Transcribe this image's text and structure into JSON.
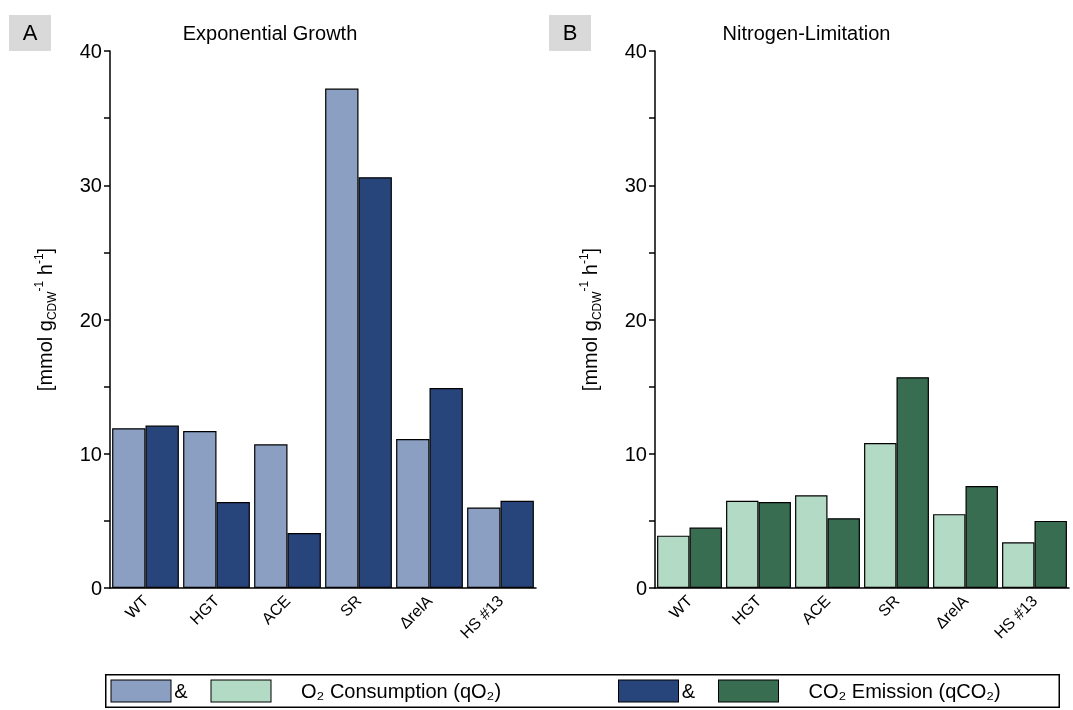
{
  "chart_data": [
    {
      "type": "bar",
      "title": "Exponential Growth",
      "ylabel": "[mmol g$_{CDW}$$^{-1}$ h$^{-1}$]",
      "annotations": [
        "A"
      ],
      "categories": [
        "WT",
        "HGT",
        "ACE",
        "SR",
        "ΔrelA",
        "HS #13"
      ],
      "series": [
        {
          "color": "#8a9fc2",
          "values": [
            11.9,
            11.7,
            10.7,
            37.2,
            11.1,
            6.0
          ]
        },
        {
          "color": "#27457b",
          "values": [
            12.1,
            6.4,
            4.1,
            30.6,
            14.9,
            6.5
          ]
        }
      ],
      "ylim": [
        0,
        40
      ],
      "yticks": [
        0,
        {
          "value": 5,
          "label": null
        },
        10,
        {
          "value": 15,
          "label": null
        },
        20,
        {
          "value": 25,
          "label": null
        },
        30,
        {
          "value": 35,
          "label": null
        },
        40
      ],
      "grid": false
    },
    {
      "type": "bar",
      "title": "Nitrogen-Limitation",
      "ylabel": "[mmol g$_{CDW}$$^{-1}$ h$^{-1}$]",
      "annotations": [
        "B",
        "&"
      ],
      "categories": [
        "WT",
        "HGT",
        "ACE",
        "SR",
        "ΔrelA",
        "HS #13"
      ],
      "series": [
        {
          "name": "O₂ Consumption (qO₂)",
          "color": "#b3dac5",
          "values": [
            3.9,
            6.5,
            6.9,
            10.8,
            5.5,
            3.4
          ]
        },
        {
          "name": "CO₂ Emission (qCO₂)",
          "color": "#386d52",
          "values": [
            4.5,
            6.4,
            5.2,
            15.7,
            7.6,
            5.0
          ]
        }
      ],
      "ylim": [
        0,
        40
      ],
      "yticks": [
        0,
        {
          "value": 5,
          "label": null
        },
        10,
        {
          "value": 15,
          "label": null
        },
        20,
        {
          "value": 25,
          "label": null
        },
        30,
        {
          "value": 35,
          "label": null
        },
        40
      ],
      "grid": false,
      "legend": "bottom"
    }
  ]
}
